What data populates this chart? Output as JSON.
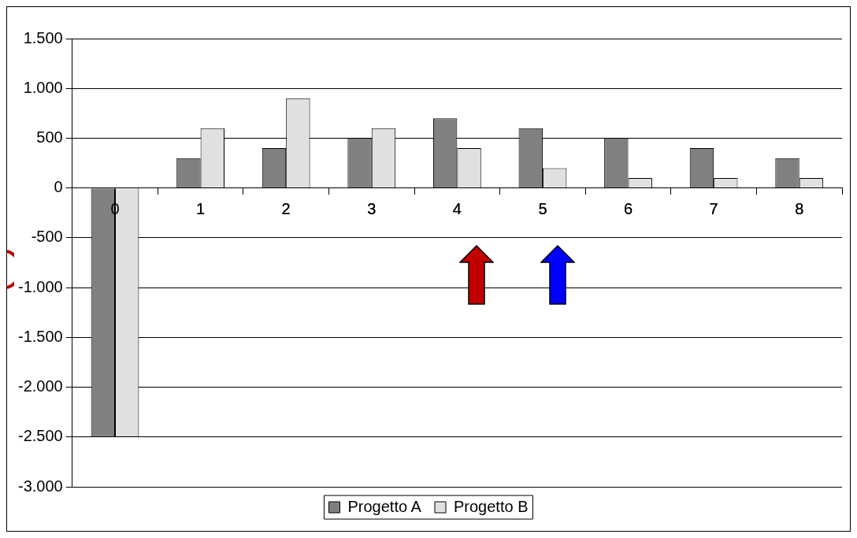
{
  "chart_data": {
    "type": "bar",
    "categories": [
      "0",
      "1",
      "2",
      "3",
      "4",
      "5",
      "6",
      "7",
      "8"
    ],
    "series": [
      {
        "name": "Progetto A",
        "color": "#808080",
        "values": [
          -2500,
          300,
          400,
          500,
          700,
          600,
          500,
          400,
          300
        ]
      },
      {
        "name": "Progetto B",
        "color": "#e0e0e0",
        "values": [
          -2500,
          600,
          900,
          600,
          400,
          200,
          100,
          100,
          100
        ]
      }
    ],
    "ylim": [
      -3000,
      1500
    ],
    "yticks": [
      {
        "value": -3000,
        "label": "-3.000"
      },
      {
        "value": -2500,
        "label": "-2.500"
      },
      {
        "value": -2000,
        "label": "-2.000"
      },
      {
        "value": -1500,
        "label": "-1.500"
      },
      {
        "value": -1000,
        "label": "-1.000"
      },
      {
        "value": -500,
        "label": "-500"
      },
      0,
      {
        "value": 500,
        "label": "500"
      },
      {
        "value": 1000,
        "label": "1.000"
      },
      {
        "value": 1500,
        "label": "1.500"
      }
    ],
    "grid": "y",
    "legend": "bottom"
  }
}
